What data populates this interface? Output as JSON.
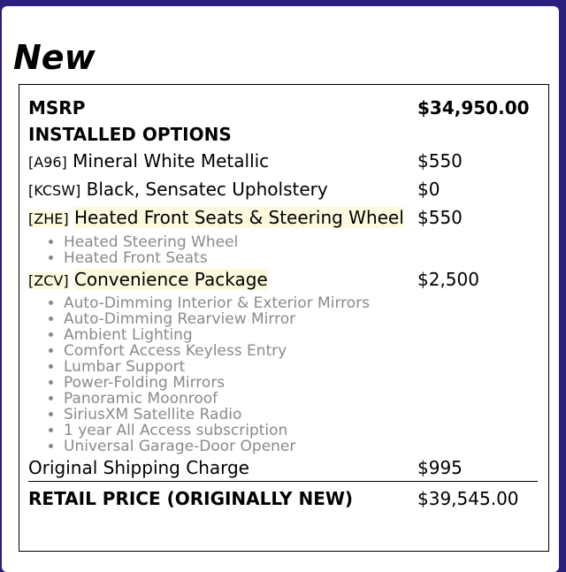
{
  "colors": {
    "background": "#2b1f7e",
    "highlight": "#fcf9de",
    "sub_item_text": "#8a8a8a"
  },
  "title": "New",
  "msrp": {
    "label": "MSRP",
    "price": "$34,950.00"
  },
  "installed_options_label": "INSTALLED OPTIONS",
  "options": [
    {
      "code": "[A96]",
      "name": "Mineral White Metallic",
      "price": "$550",
      "items": []
    },
    {
      "code": "[KCSW]",
      "name": "Black, Sensatec Upholstery",
      "price": "$0",
      "items": []
    },
    {
      "code": "[ZHE]",
      "name": "Heated Front Seats & Steering Wheel",
      "price": "$550",
      "items": [
        "Heated Steering Wheel",
        "Heated Front Seats"
      ]
    },
    {
      "code": "[ZCV]",
      "name": "Convenience Package",
      "price": "$2,500",
      "items": [
        "Auto-Dimming Interior & Exterior Mirrors",
        "Auto-Dimming Rearview Mirror",
        "Ambient Lighting",
        "Comfort Access Keyless Entry",
        "Lumbar Support",
        "Power-Folding Mirrors",
        "Panoramic Moonroof",
        "SiriusXM Satellite Radio",
        "1 year All Access subscription",
        "Universal Garage-Door Opener"
      ]
    }
  ],
  "shipping": {
    "label": "Original Shipping Charge",
    "price": "$995"
  },
  "retail": {
    "label": "RETAIL PRICE (ORIGINALLY NEW)",
    "price": "$39,545.00"
  }
}
